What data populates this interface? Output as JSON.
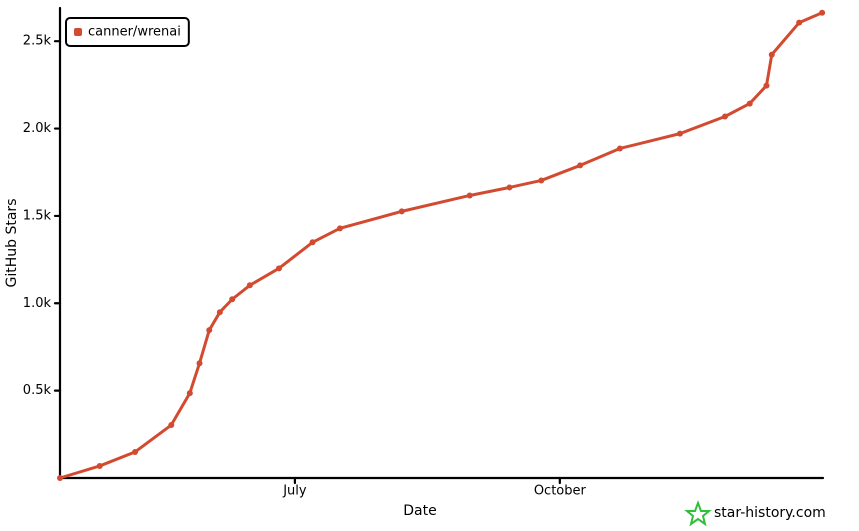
{
  "chart_data": {
    "type": "line",
    "x_label": "Date",
    "y_label": "GitHub Stars",
    "xlim": [
      4.34,
      12.98
    ],
    "xticks": [
      {
        "value": 7,
        "label": "July"
      },
      {
        "value": 10,
        "label": "October"
      }
    ],
    "ylim": [
      0,
      2690
    ],
    "yticks": [
      {
        "value": 500,
        "label": "0.5k"
      },
      {
        "value": 1000,
        "label": "1.0k"
      },
      {
        "value": 1500,
        "label": "1.5k"
      },
      {
        "value": 2000,
        "label": "2.0k"
      },
      {
        "value": 2500,
        "label": "2.5k"
      }
    ],
    "x": [
      4.34,
      4.79,
      5.19,
      5.6,
      5.81,
      5.92,
      6.03,
      6.15,
      6.29,
      6.49,
      6.82,
      7.2,
      7.51,
      8.21,
      8.98,
      9.43,
      9.79,
      10.23,
      10.68,
      11.36,
      11.87,
      12.15,
      12.34,
      12.4,
      12.71,
      12.97
    ],
    "series": [
      {
        "name": "canner/wrenai",
        "color": "#d24b30",
        "values": [
          0,
          69,
          149,
          303,
          486,
          657,
          846,
          949,
          1023,
          1103,
          1200,
          1349,
          1429,
          1526,
          1617,
          1663,
          1703,
          1789,
          1886,
          1971,
          2069,
          2143,
          2246,
          2423,
          2606,
          2663
        ]
      }
    ],
    "legend": "top-left",
    "watermark": "star-history.com"
  }
}
